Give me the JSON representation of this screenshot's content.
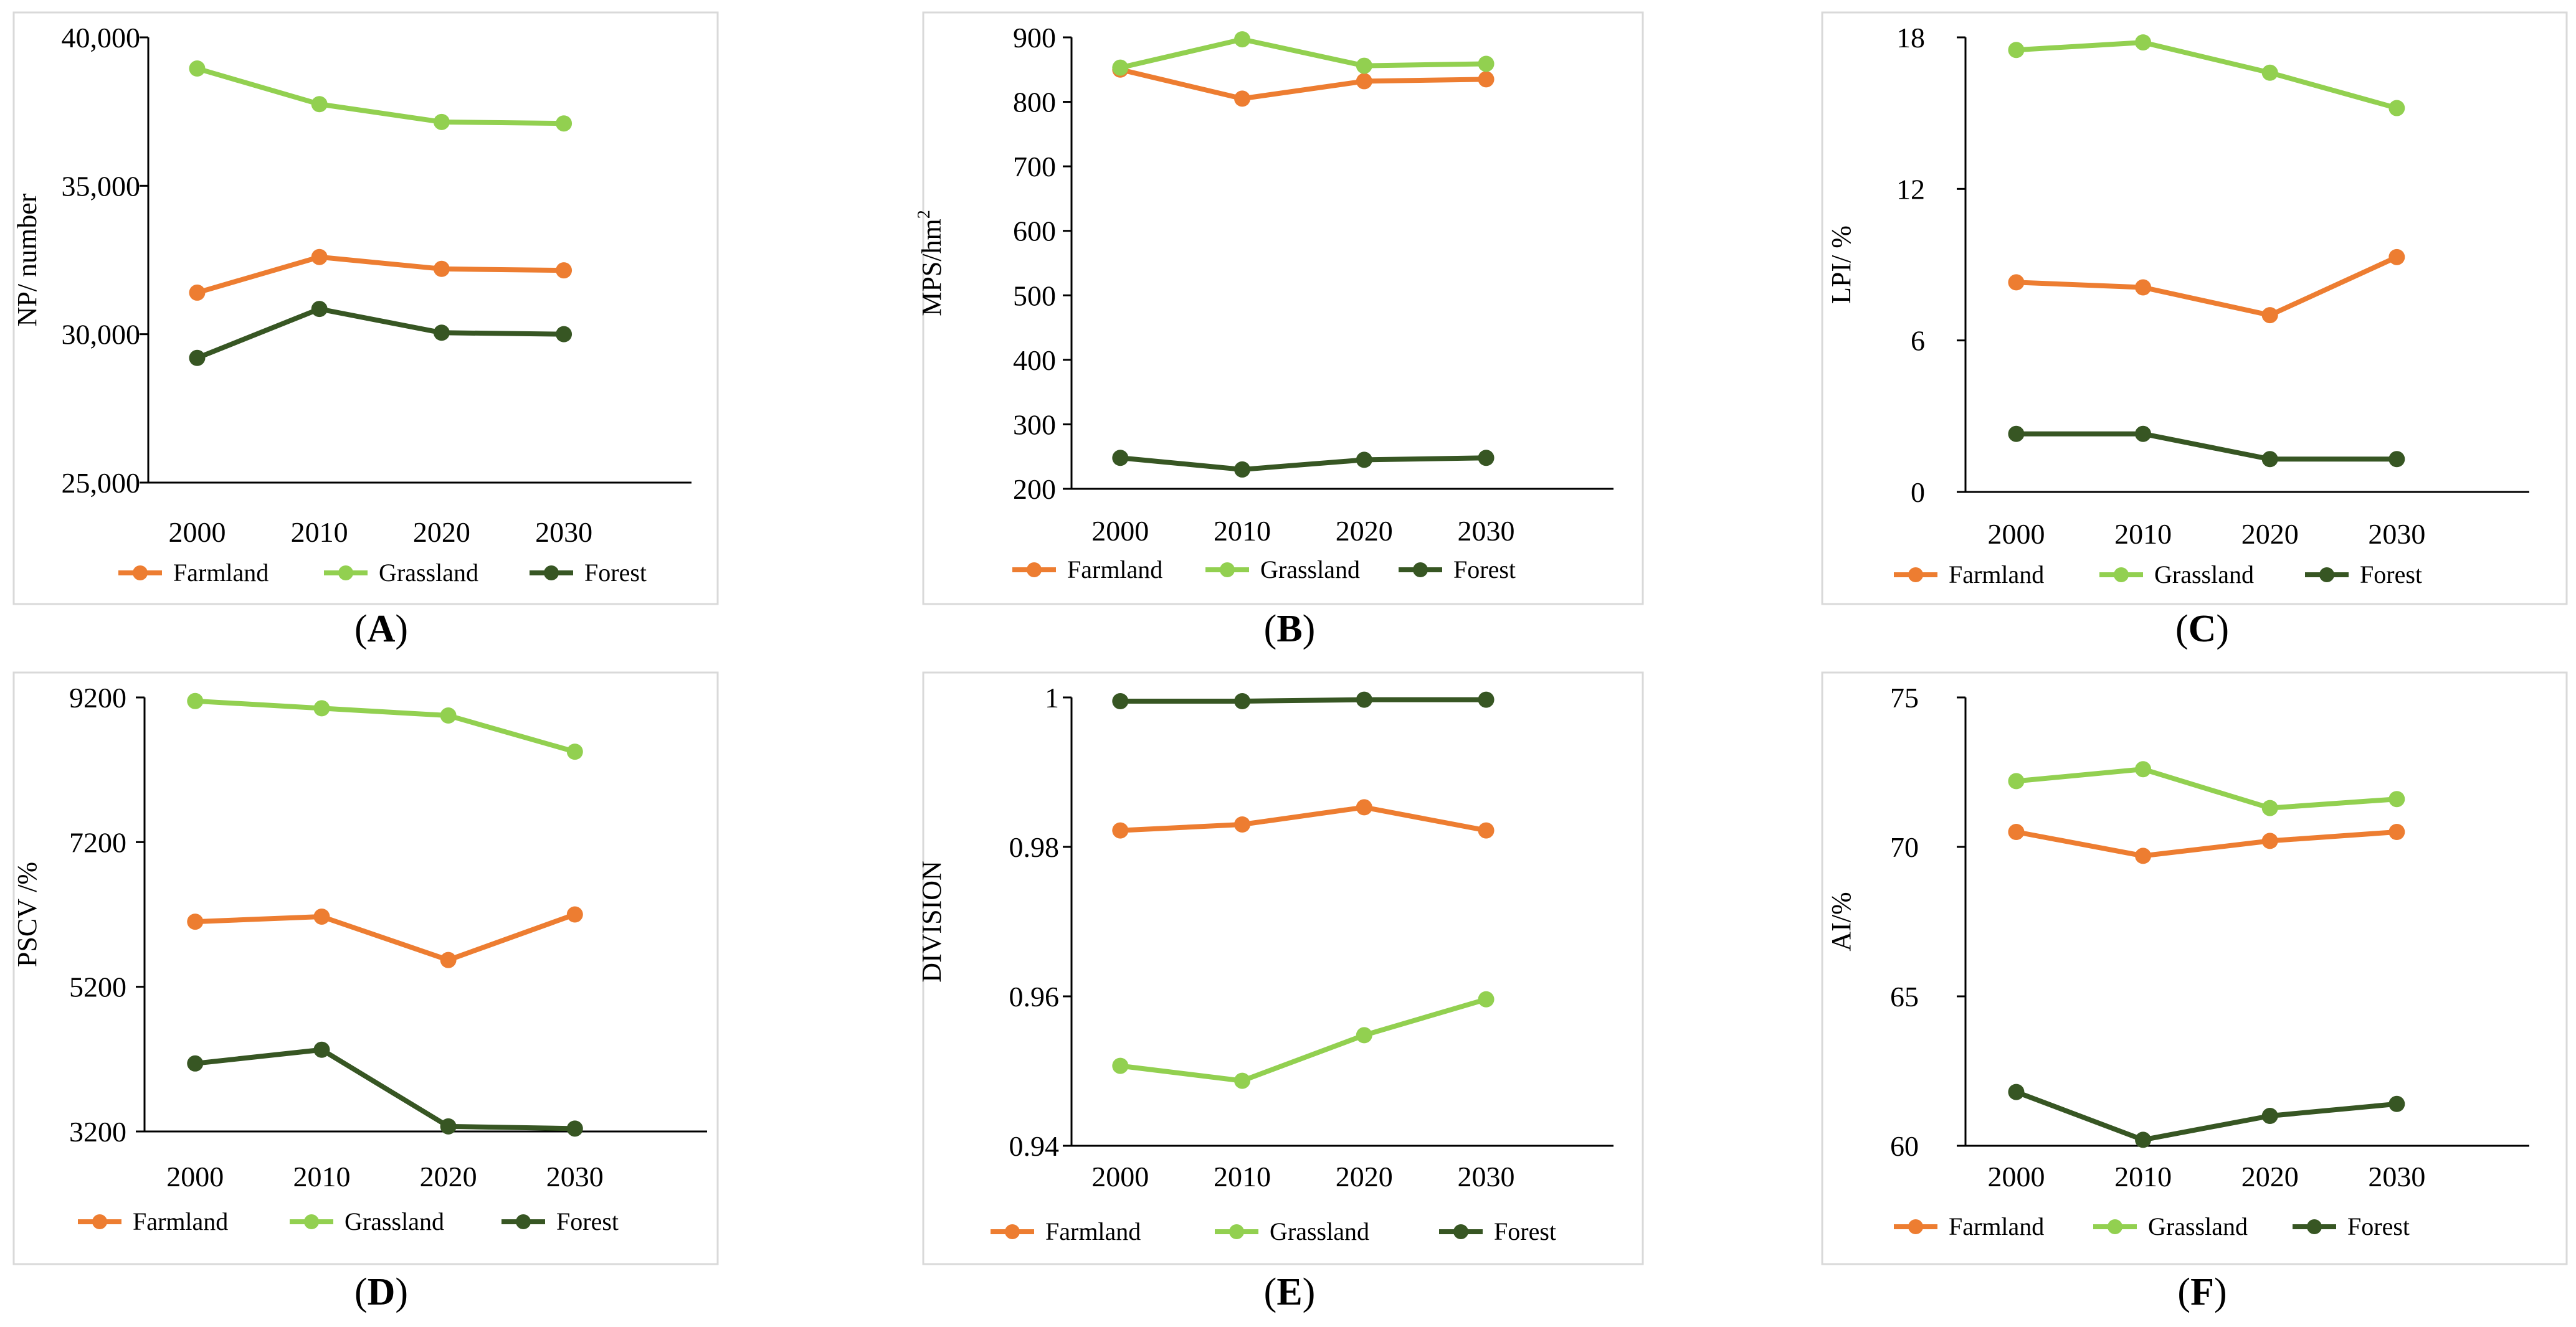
{
  "colors": {
    "Farmland": "#ed7d31",
    "Grassland": "#92d050",
    "Forest": "#375623"
  },
  "chart_data": [
    {
      "id": "A",
      "type": "line",
      "panel_label": "A",
      "ylabel": "NP/ number",
      "categories": [
        "2000",
        "2010",
        "2020",
        "2030"
      ],
      "ylim": [
        25000,
        40000
      ],
      "yticks": [
        25000,
        30000,
        35000,
        40000
      ],
      "ytick_labels": [
        "25,000",
        "30,000",
        "35,000",
        "40,000"
      ],
      "series": [
        {
          "name": "Farmland",
          "values": [
            31400,
            32600,
            32200,
            32150
          ]
        },
        {
          "name": "Grassland",
          "values": [
            38950,
            37750,
            37150,
            37100
          ]
        },
        {
          "name": "Forest",
          "values": [
            29200,
            30850,
            30050,
            30000
          ]
        }
      ]
    },
    {
      "id": "B",
      "type": "line",
      "panel_label": "B",
      "ylabel": "MPS/hm",
      "ylabel_sup": "2",
      "categories": [
        "2000",
        "2010",
        "2020",
        "2030"
      ],
      "ylim": [
        200,
        900
      ],
      "yticks": [
        200,
        300,
        400,
        500,
        600,
        700,
        800,
        900
      ],
      "ytick_labels": [
        "200",
        "300",
        "400",
        "500",
        "600",
        "700",
        "800",
        "900"
      ],
      "series": [
        {
          "name": "Farmland",
          "values": [
            850,
            805,
            832,
            835
          ]
        },
        {
          "name": "Grassland",
          "values": [
            853,
            897,
            856,
            859
          ]
        },
        {
          "name": "Forest",
          "values": [
            248,
            230,
            245,
            248
          ]
        }
      ]
    },
    {
      "id": "C",
      "type": "line",
      "panel_label": "C",
      "ylabel": "LPI/ %",
      "categories": [
        "2000",
        "2010",
        "2020",
        "2030"
      ],
      "ylim": [
        0,
        18
      ],
      "yticks": [
        0,
        6,
        12,
        18
      ],
      "ytick_labels": [
        "0",
        "6",
        "12",
        "18"
      ],
      "series": [
        {
          "name": "Farmland",
          "values": [
            8.3,
            8.1,
            7.0,
            9.3
          ]
        },
        {
          "name": "Grassland",
          "values": [
            17.5,
            17.8,
            16.6,
            15.2
          ]
        },
        {
          "name": "Forest",
          "values": [
            2.3,
            2.3,
            1.3,
            1.3
          ]
        }
      ]
    },
    {
      "id": "D",
      "type": "line",
      "panel_label": "D",
      "ylabel": "PSCV /%",
      "categories": [
        "2000",
        "2010",
        "2020",
        "2030"
      ],
      "ylim": [
        3200,
        9200
      ],
      "yticks": [
        3200,
        5200,
        7200,
        9200
      ],
      "ytick_labels": [
        "3200",
        "5200",
        "7200",
        "9200"
      ],
      "series": [
        {
          "name": "Farmland",
          "values": [
            6100,
            6170,
            5570,
            6200
          ]
        },
        {
          "name": "Grassland",
          "values": [
            9150,
            9050,
            8950,
            8450
          ]
        },
        {
          "name": "Forest",
          "values": [
            4140,
            4330,
            3270,
            3240
          ]
        }
      ]
    },
    {
      "id": "E",
      "type": "line",
      "panel_label": "E",
      "ylabel": "DIVISION",
      "categories": [
        "2000",
        "2010",
        "2020",
        "2030"
      ],
      "ylim": [
        0.94,
        1.0
      ],
      "yticks": [
        0.94,
        0.96,
        0.98,
        1.0
      ],
      "ytick_labels": [
        "0.94",
        "0.96",
        "0.98",
        "1"
      ],
      "series": [
        {
          "name": "Farmland",
          "values": [
            0.9822,
            0.983,
            0.9853,
            0.9822
          ]
        },
        {
          "name": "Grassland",
          "values": [
            0.9507,
            0.9487,
            0.9548,
            0.9596
          ]
        },
        {
          "name": "Forest",
          "values": [
            0.9995,
            0.9995,
            0.9997,
            0.9997
          ]
        }
      ]
    },
    {
      "id": "F",
      "type": "line",
      "panel_label": "F",
      "ylabel": "AI/%",
      "categories": [
        "2000",
        "2010",
        "2020",
        "2030"
      ],
      "ylim": [
        60,
        75
      ],
      "yticks": [
        60,
        65,
        70,
        75
      ],
      "ytick_labels": [
        "60",
        "65",
        "70",
        "75"
      ],
      "series": [
        {
          "name": "Farmland",
          "values": [
            70.5,
            69.7,
            70.2,
            70.5
          ]
        },
        {
          "name": "Grassland",
          "values": [
            72.2,
            72.6,
            71.3,
            71.6
          ]
        },
        {
          "name": "Forest",
          "values": [
            61.8,
            60.2,
            61.0,
            61.4
          ]
        }
      ]
    }
  ]
}
